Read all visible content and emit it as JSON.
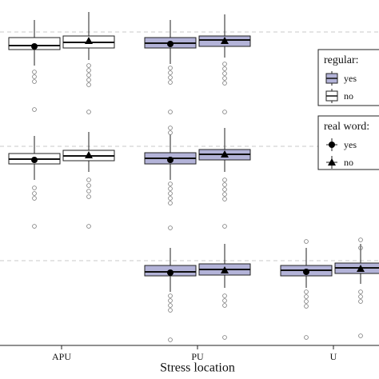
{
  "chart_data": {
    "type": "box",
    "x_label": "Stress location",
    "categories": [
      "APU",
      "PU",
      "U"
    ],
    "ylim": [
      0,
      432
    ],
    "hlines": [
      392,
      249,
      106
    ],
    "legends": [
      {
        "title": "regular:",
        "items": [
          {
            "label": "yes",
            "color": "#b3b3d8"
          },
          {
            "label": "no",
            "color": "#ffffff"
          }
        ]
      },
      {
        "title": "real word:",
        "items": [
          {
            "label": "yes",
            "marker": "circle"
          },
          {
            "label": "no",
            "marker": "triangle"
          }
        ]
      }
    ],
    "panels": [
      {
        "boxes": [
          {
            "category": "APU",
            "regular": "no",
            "real_word": "yes",
            "whislo": 350,
            "q1": 370,
            "med": 375,
            "q3": 385,
            "whishi": 407,
            "mean": 374,
            "fliers": [
              342,
              336,
              330,
              295
            ]
          },
          {
            "category": "APU",
            "regular": "no",
            "real_word": "no",
            "whislo": 357,
            "q1": 372,
            "med": 379,
            "q3": 387,
            "whishi": 417,
            "mean": 381,
            "fliers": [
              350,
              344,
              338,
              332,
              326,
              292
            ]
          },
          {
            "category": "PU",
            "regular": "yes",
            "real_word": "yes",
            "whislo": 352,
            "q1": 372,
            "med": 378,
            "q3": 385,
            "whishi": 407,
            "mean": 377,
            "fliers": [
              347,
              341,
              335,
              329,
              292
            ]
          },
          {
            "category": "PU",
            "regular": "yes",
            "real_word": "no",
            "whislo": 360,
            "q1": 374,
            "med": 382,
            "q3": 387,
            "whishi": 414,
            "mean": 381,
            "fliers": [
              352,
              346,
              340,
              334,
              328,
              292
            ]
          }
        ]
      },
      {
        "boxes": [
          {
            "category": "APU",
            "regular": "no",
            "real_word": "yes",
            "whislo": 207,
            "q1": 227,
            "med": 233,
            "q3": 240,
            "whishi": 262,
            "mean": 232,
            "fliers": [
              197,
              190,
              184,
              149
            ]
          },
          {
            "category": "APU",
            "regular": "no",
            "real_word": "no",
            "whislo": 217,
            "q1": 231,
            "med": 237,
            "q3": 244,
            "whishi": 267,
            "mean": 238,
            "fliers": [
              207,
              200,
              193,
              186,
              149
            ]
          },
          {
            "category": "PU",
            "regular": "yes",
            "real_word": "yes",
            "whislo": 207,
            "q1": 227,
            "med": 234,
            "q3": 241,
            "whishi": 264,
            "mean": 232,
            "fliers": [
              272,
              266,
              202,
              196,
              190,
              184,
              178,
              147
            ]
          },
          {
            "category": "PU",
            "regular": "yes",
            "real_word": "no",
            "whislo": 217,
            "q1": 232,
            "med": 239,
            "q3": 245,
            "whishi": 272,
            "mean": 239,
            "fliers": [
              207,
              201,
              195,
              189,
              183,
              149
            ]
          }
        ]
      },
      {
        "boxes": [
          {
            "category": "PU",
            "regular": "yes",
            "real_word": "yes",
            "whislo": 67,
            "q1": 87,
            "med": 92,
            "q3": 100,
            "whishi": 122,
            "mean": 91,
            "fliers": [
              62,
              56,
              50,
              44,
              7
            ]
          },
          {
            "category": "PU",
            "regular": "yes",
            "real_word": "no",
            "whislo": 72,
            "q1": 88,
            "med": 95,
            "q3": 102,
            "whishi": 127,
            "mean": 94,
            "fliers": [
              62,
              56,
              50,
              10
            ]
          },
          {
            "category": "U",
            "regular": "yes",
            "real_word": "yes",
            "whislo": 72,
            "q1": 87,
            "med": 94,
            "q3": 100,
            "whishi": 122,
            "mean": 92,
            "fliers": [
              130,
              67,
              61,
              55,
              49,
              10
            ]
          },
          {
            "category": "U",
            "regular": "yes",
            "real_word": "no",
            "whislo": 77,
            "q1": 90,
            "med": 97,
            "q3": 103,
            "whishi": 127,
            "mean": 96,
            "fliers": [
              132,
              122,
              67,
              61,
              55,
              12
            ]
          }
        ]
      }
    ]
  }
}
